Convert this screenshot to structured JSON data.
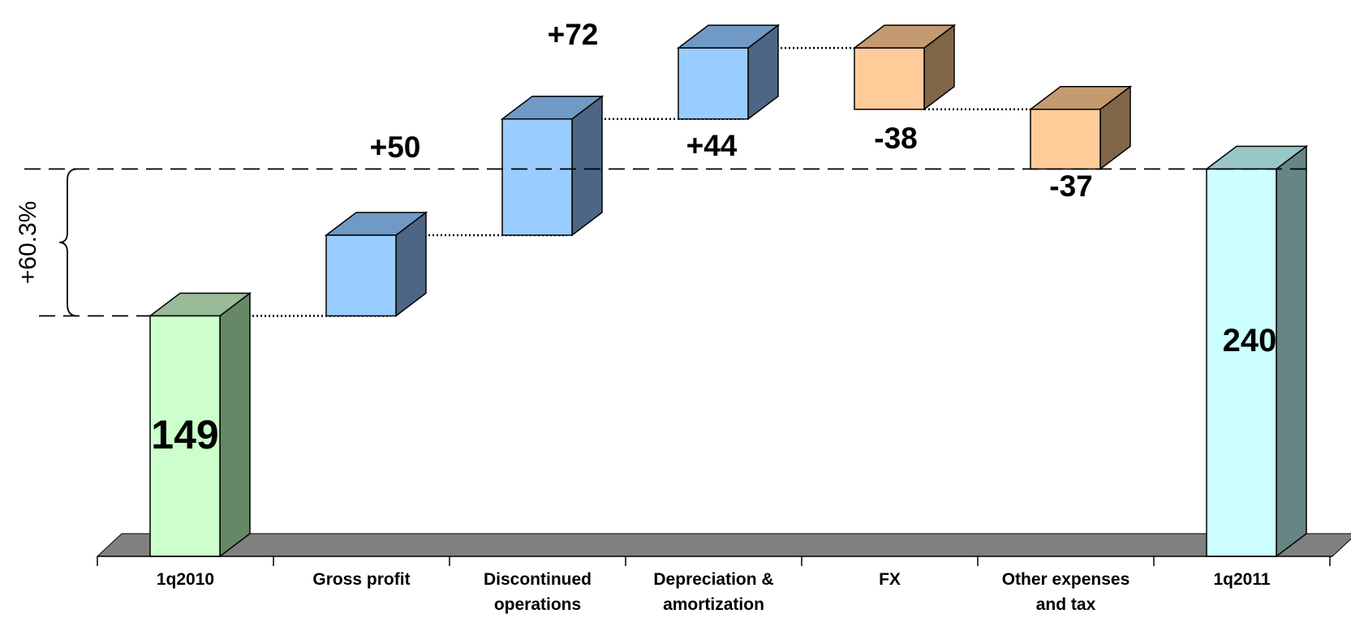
{
  "chart_data": {
    "type": "bar",
    "subtype": "waterfall-3d",
    "title": "",
    "xlabel": "",
    "ylabel": "",
    "categories": [
      [
        "1q2010"
      ],
      [
        "Gross profit"
      ],
      [
        "Discontinued",
        "operations"
      ],
      [
        "Depreciation &",
        "amortization"
      ],
      [
        "FX"
      ],
      [
        "Other expenses",
        "and  tax"
      ],
      [
        "1q2011"
      ]
    ],
    "steps": [
      {
        "kind": "total",
        "start": 0,
        "end": 149,
        "label": "149",
        "color": "#ccffcc",
        "top_color": "#99bb99",
        "side_color": "#668866"
      },
      {
        "kind": "increase",
        "start": 149,
        "end": 199,
        "label": "+50",
        "color": "#99ccff",
        "top_color": "#7099c6",
        "side_color": "#4d6685"
      },
      {
        "kind": "increase",
        "start": 199,
        "end": 271,
        "label": "+72",
        "color": "#99ccff",
        "top_color": "#7099c6",
        "side_color": "#4d6685"
      },
      {
        "kind": "increase",
        "start": 271,
        "end": 315,
        "label": "+44",
        "color": "#99ccff",
        "top_color": "#7099c6",
        "side_color": "#4d6685"
      },
      {
        "kind": "decrease",
        "start": 315,
        "end": 277,
        "label": "-38",
        "color": "#ffcc99",
        "top_color": "#c49a70",
        "side_color": "#806647"
      },
      {
        "kind": "decrease",
        "start": 277,
        "end": 240,
        "label": "-37",
        "color": "#ffcc99",
        "top_color": "#c49a70",
        "side_color": "#806647"
      },
      {
        "kind": "total",
        "start": 0,
        "end": 240,
        "label": "240",
        "color": "#ccffff",
        "top_color": "#99c6c6",
        "side_color": "#668585"
      }
    ],
    "annotation": {
      "text": "+60.3%",
      "from": 149,
      "to": 240
    },
    "floor_color": "#808080",
    "grid": false,
    "legend": "none"
  }
}
